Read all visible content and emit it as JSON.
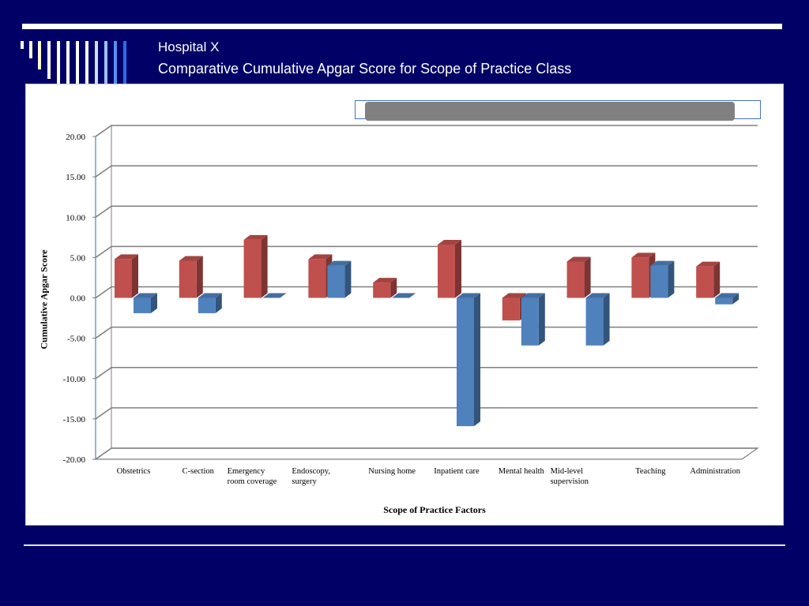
{
  "slide": {
    "title_line1": "Hospital X",
    "title_line2": "Comparative Cumulative Apgar Score for Scope of Practice Class"
  },
  "colors": {
    "background": "#000066",
    "series_red": "#c0504d",
    "series_blue": "#4f81bd",
    "legend_border": "#4472c4",
    "legend_redaction": "#808080"
  },
  "chart_data": {
    "type": "bar",
    "style": "3d-clustered",
    "title": "",
    "xlabel": "Scope of Practice Factors",
    "ylabel": "Cumulative Apgar Score",
    "ylim": [
      -20,
      20
    ],
    "yticks": [
      "20.00",
      "15.00",
      "10.00",
      "5.00",
      "0.00",
      "-5.00",
      "-10.00",
      "-15.00",
      "-20.00"
    ],
    "categories": [
      [
        "Obstetrics"
      ],
      [
        "C-section"
      ],
      [
        "Emergency",
        "room coverage"
      ],
      [
        "Endoscopy,",
        "surgery"
      ],
      [
        "Nursing home"
      ],
      [
        "Inpatient care"
      ],
      [
        "Mental health"
      ],
      [
        "Mid-level",
        "supervision"
      ],
      [
        "Teaching"
      ],
      [
        "Administration"
      ]
    ],
    "series": [
      {
        "color": "#c0504d",
        "values": [
          4.8,
          4.6,
          7.2,
          4.8,
          1.9,
          6.6,
          -2.8,
          4.5,
          5.0,
          3.9
        ]
      },
      {
        "color": "#4f81bd",
        "values": [
          -1.9,
          -1.9,
          0.0,
          4.0,
          0.0,
          -15.9,
          -5.9,
          -5.9,
          4.0,
          -0.8
        ]
      }
    ],
    "grid": true,
    "legend": "top, redacted"
  }
}
